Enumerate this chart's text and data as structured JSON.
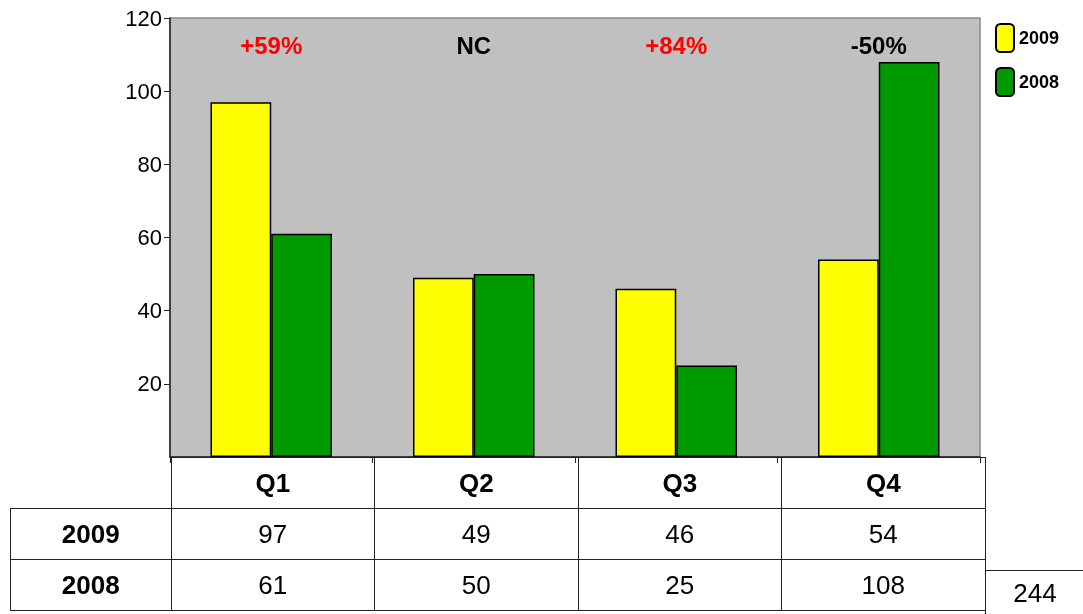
{
  "chart_data": {
    "type": "bar",
    "categories": [
      "Q1",
      "Q2",
      "Q3",
      "Q4"
    ],
    "series": [
      {
        "name": "2009",
        "color": "#ffff00",
        "values": [
          97,
          49,
          46,
          54
        ]
      },
      {
        "name": "2008",
        "color": "#009900",
        "values": [
          61,
          50,
          25,
          108
        ]
      }
    ],
    "ylim": [
      0,
      120
    ],
    "yticks": [
      20,
      40,
      60,
      80,
      100,
      120
    ],
    "grid": false,
    "legend": "top right",
    "data_labels": true,
    "annotations": [
      "+59%",
      "NC",
      "+84%",
      "-50%",
      "244"
    ]
  }
}
